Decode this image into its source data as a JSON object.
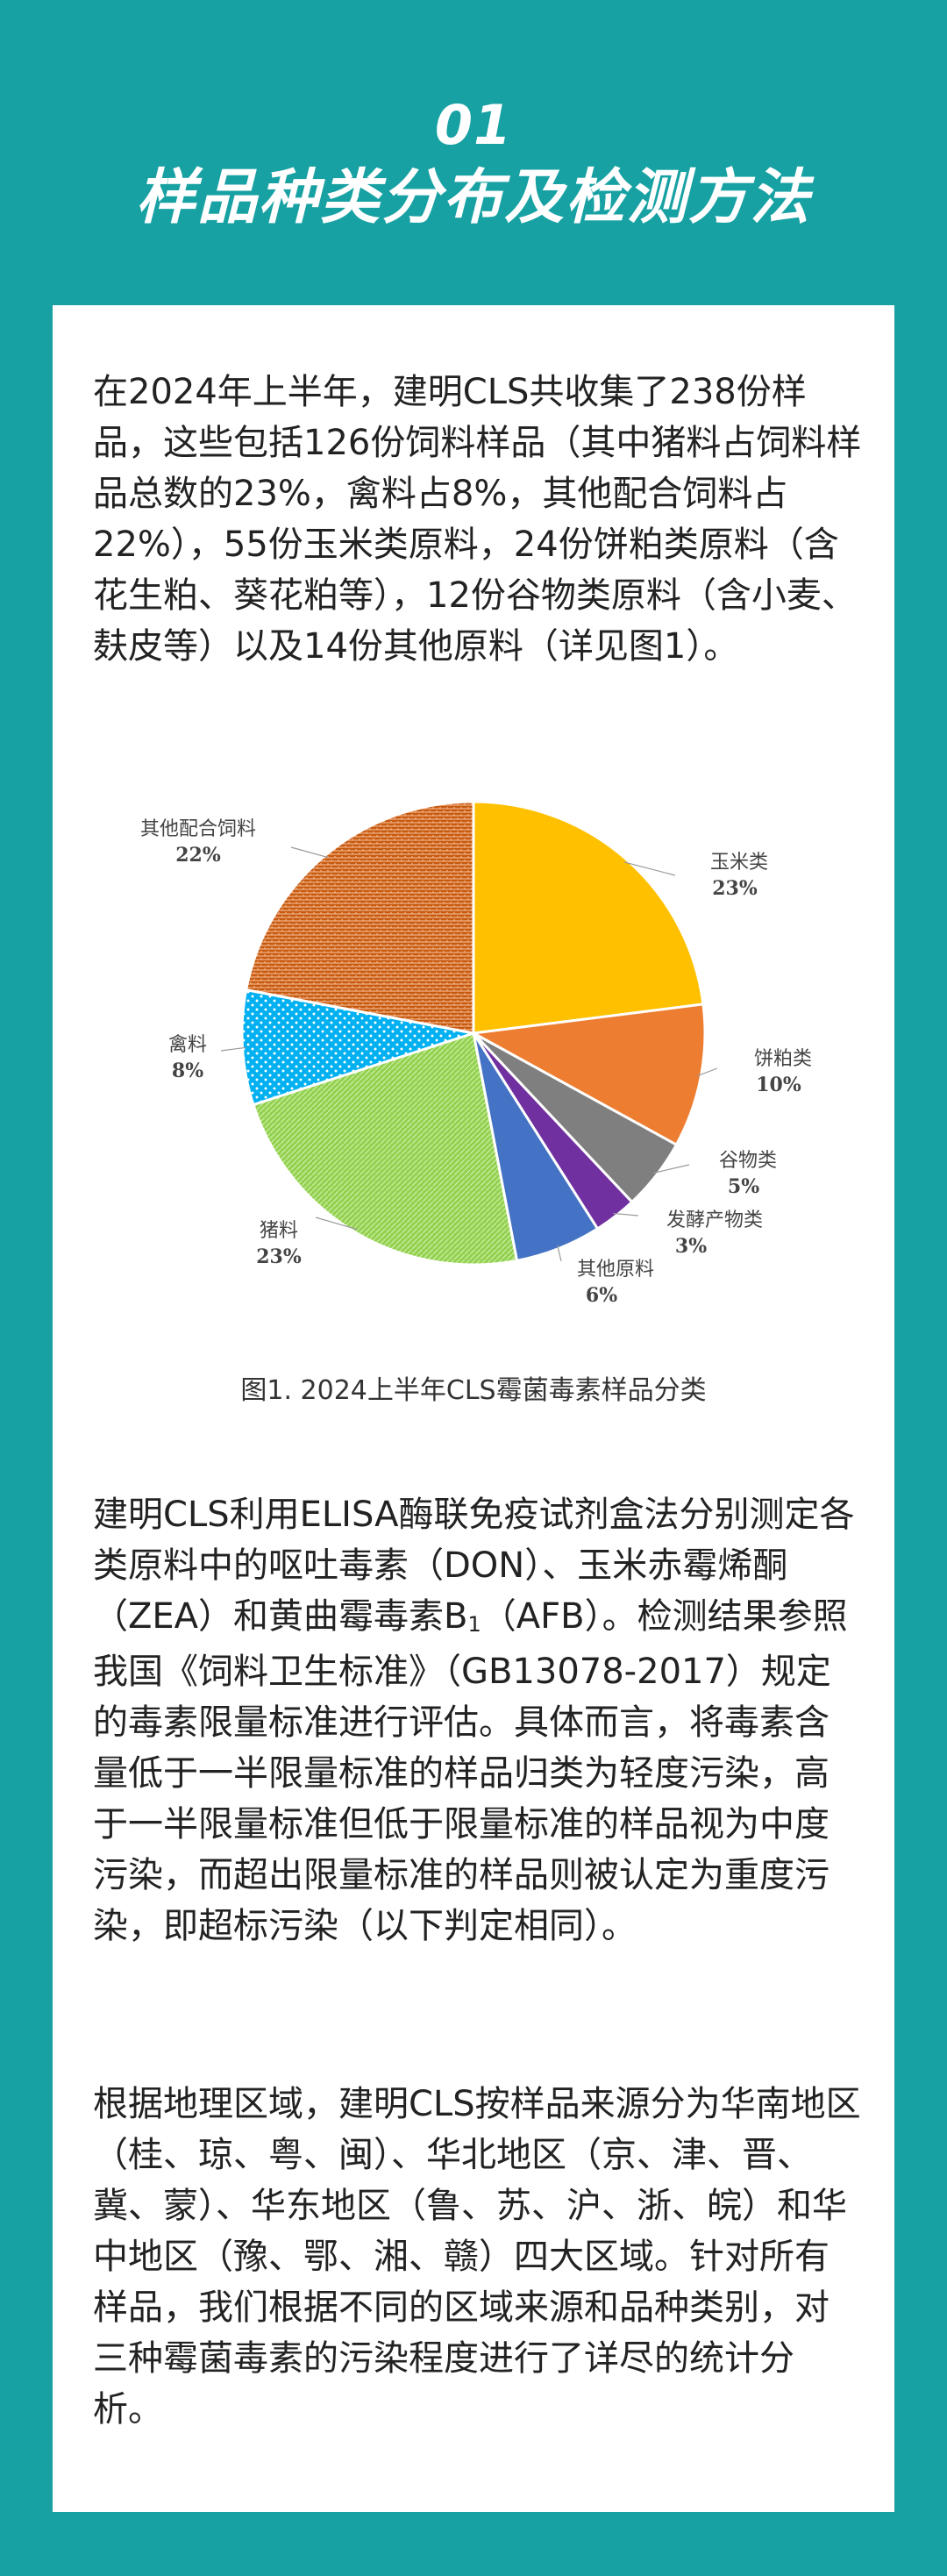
{
  "header": {
    "section_number": "01",
    "section_title": "样品种类分布及检测方法"
  },
  "paragraphs": {
    "p1": "在2024年上半年，建明CLS共收集了238份样品，这些包括126份饲料样品（其中猪料占饲料样品总数的23%，禽料占8%，其他配合饲料占22%），55份玉米类原料，24份饼粕类原料（含花生粕、葵花粕等），12份谷物类原料（含小麦、麸皮等）以及14份其他原料（详见图1）。",
    "p2_a": "建明CLS利用ELISA酶联免疫试剂盒法分别测定各类原料中的呕吐毒素（DON）、玉米赤霉烯酮（ZEA）和黄曲霉毒素B",
    "p2_sub": "1",
    "p2_b": "（AFB）。检测结果参照我国《饲料卫生标准》（GB13078-2017）规定的毒素限量标准进行评估。具体而言，将毒素含量低于一半限量标准的样品归类为轻度污染，高于一半限量标准但低于限量标准的样品视为中度污染，而超出限量标准的样品则被认定为重度污染，即超标污染（以下判定相同）。",
    "p3": "根据地理区域，建明CLS按样品来源分为华南地区（桂、琼、粤、闽）、华北地区（京、津、晋、冀、蒙）、华东地区（鲁、苏、沪、浙、皖）和华中地区（豫、鄂、湘、赣）四大区域。针对所有样品，我们根据不同的区域来源和品种类别，对三种霉菌毒素的污染程度进行了详尽的统计分析。"
  },
  "chart_data": {
    "type": "pie",
    "title": "",
    "caption": "图1. 2024上半年CLS霉菌毒素样品分类",
    "slices": [
      {
        "label": "玉米类",
        "pct_label": "23%",
        "value": 23,
        "color": "#FFC000",
        "pattern": "solid"
      },
      {
        "label": "饼粕类",
        "pct_label": "10%",
        "value": 10,
        "color": "#ED7D31",
        "pattern": "solid"
      },
      {
        "label": "谷物类",
        "pct_label": "5%",
        "value": 5,
        "color": "#7F7F7F",
        "pattern": "solid"
      },
      {
        "label": "发酵产物类",
        "pct_label": "3%",
        "value": 3,
        "color": "#7030A0",
        "pattern": "solid"
      },
      {
        "label": "其他原料",
        "pct_label": "6%",
        "value": 6,
        "color": "#4472C4",
        "pattern": "solid"
      },
      {
        "label": "猪料",
        "pct_label": "23%",
        "value": 23,
        "color": "#92D050",
        "pattern": "grass"
      },
      {
        "label": "禽料",
        "pct_label": "8%",
        "value": 8,
        "color": "#00B0F0",
        "pattern": "dots"
      },
      {
        "label": "其他配合饲料",
        "pct_label": "22%",
        "value": 22,
        "color": "#C55A11",
        "pattern": "weave"
      }
    ]
  }
}
